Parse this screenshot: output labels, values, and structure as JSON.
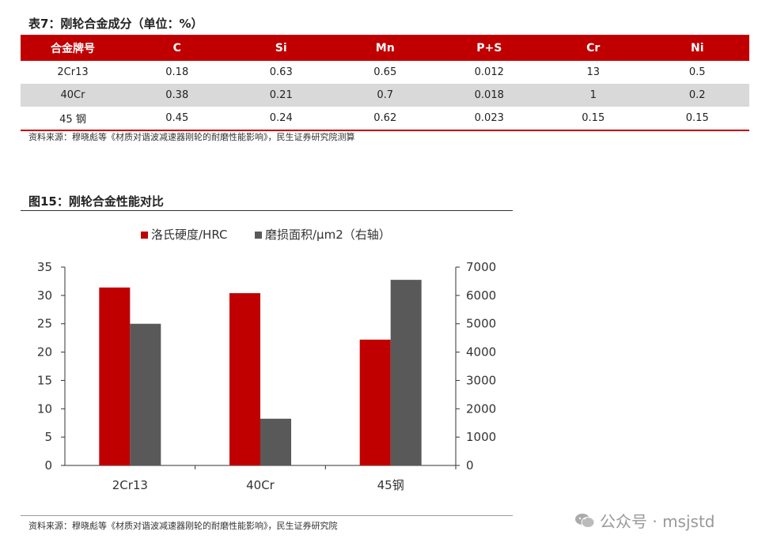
{
  "table": {
    "title": "表7：刚轮合金成分（单位：%）",
    "headers": [
      "合金牌号",
      "C",
      "Si",
      "Mn",
      "P+S",
      "Cr",
      "Ni"
    ],
    "rows": [
      [
        "2Cr13",
        "0.18",
        "0.63",
        "0.65",
        "0.012",
        "13",
        "0.5"
      ],
      [
        "40Cr",
        "0.38",
        "0.21",
        "0.7",
        "0.018",
        "1",
        "0.2"
      ],
      [
        "45 钢",
        "0.45",
        "0.24",
        "0.62",
        "0.023",
        "0.15",
        "0.15"
      ]
    ],
    "source": "资料来源：穆晓彪等《材质对谐波减速器刚轮的耐磨性能影响》，民生证券研究院测算"
  },
  "figure": {
    "title": "图15：刚轮合金性能对比",
    "source": "资料来源：穆晓彪等《材质对谐波减速器刚轮的耐磨性能影响》，民生证券研究院"
  },
  "chart_data": {
    "type": "bar",
    "categories": [
      "2Cr13",
      "40Cr",
      "45钢"
    ],
    "series": [
      {
        "name": "洛氏硬度/HRC",
        "axis": "left",
        "color": "#c00000",
        "values": [
          31.4,
          30.4,
          22.2
        ]
      },
      {
        "name": "磨损面积/μm2（右轴）",
        "axis": "right",
        "color": "#595959",
        "values": [
          5000,
          1650,
          6550
        ]
      }
    ],
    "y_left": {
      "min": 0,
      "max": 35,
      "ticks": [
        0,
        5,
        10,
        15,
        20,
        25,
        30,
        35
      ]
    },
    "y_right": {
      "min": 0,
      "max": 7000,
      "ticks": [
        0,
        1000,
        2000,
        3000,
        4000,
        5000,
        6000,
        7000
      ]
    },
    "legend_position": "top-center",
    "grid": false
  },
  "watermark": "公众号 · msjstd"
}
